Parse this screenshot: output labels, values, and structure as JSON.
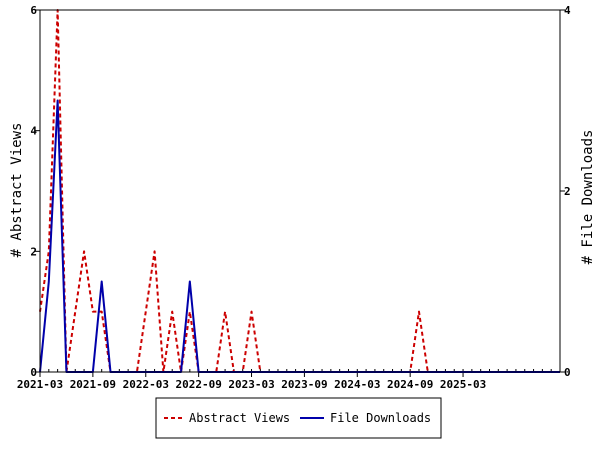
{
  "chart_data": {
    "type": "line",
    "x_tick_labels": [
      "2021-03",
      "2021-09",
      "2022-03",
      "2022-09",
      "2023-03",
      "2023-09",
      "2024-03",
      "2024-09",
      "2025-03"
    ],
    "y_left": {
      "label": "# Abstract Views",
      "range": [
        0,
        6
      ],
      "ticks": [
        "0",
        "2",
        "4",
        "6"
      ]
    },
    "y_right": {
      "label": "# File Downloads",
      "range": [
        0,
        4
      ],
      "ticks": [
        "0",
        "2",
        "4"
      ]
    },
    "x_range": [
      "2021-03",
      "2026-02"
    ],
    "legend": {
      "placement": "bottom"
    },
    "series": [
      {
        "name": "Abstract Views",
        "axis": "left",
        "color": "#cc0000",
        "style": "dashed",
        "points": [
          [
            "2021-03",
            1
          ],
          [
            "2021-04",
            2
          ],
          [
            "2021-05",
            6
          ],
          [
            "2021-06",
            0
          ],
          [
            "2021-07",
            1
          ],
          [
            "2021-08",
            2
          ],
          [
            "2021-09",
            1
          ],
          [
            "2021-10",
            1
          ],
          [
            "2021-11",
            0
          ],
          [
            "2021-12",
            0
          ],
          [
            "2022-01",
            0
          ],
          [
            "2022-02",
            0
          ],
          [
            "2022-03",
            1
          ],
          [
            "2022-04",
            2
          ],
          [
            "2022-05",
            0
          ],
          [
            "2022-06",
            1
          ],
          [
            "2022-07",
            0
          ],
          [
            "2022-08",
            1
          ],
          [
            "2022-09",
            0
          ],
          [
            "2022-10",
            0
          ],
          [
            "2022-11",
            0
          ],
          [
            "2022-12",
            1
          ],
          [
            "2023-01",
            0
          ],
          [
            "2023-02",
            0
          ],
          [
            "2023-03",
            1
          ],
          [
            "2023-04",
            0
          ],
          [
            "2023-05",
            0
          ],
          [
            "2023-06",
            0
          ],
          [
            "2023-07",
            0
          ],
          [
            "2023-08",
            0
          ],
          [
            "2023-09",
            0
          ],
          [
            "2023-10",
            0
          ],
          [
            "2023-11",
            0
          ],
          [
            "2023-12",
            0
          ],
          [
            "2024-01",
            0
          ],
          [
            "2024-02",
            0
          ],
          [
            "2024-03",
            0
          ],
          [
            "2024-04",
            0
          ],
          [
            "2024-05",
            0
          ],
          [
            "2024-06",
            0
          ],
          [
            "2024-07",
            0
          ],
          [
            "2024-08",
            0
          ],
          [
            "2024-09",
            0
          ],
          [
            "2024-10",
            1
          ],
          [
            "2024-11",
            0
          ],
          [
            "2024-12",
            0
          ],
          [
            "2025-01",
            0
          ],
          [
            "2025-02",
            0
          ],
          [
            "2025-03",
            0
          ],
          [
            "2025-04",
            0
          ],
          [
            "2025-05",
            0
          ],
          [
            "2025-06",
            0
          ],
          [
            "2025-07",
            0
          ],
          [
            "2025-08",
            0
          ],
          [
            "2025-09",
            0
          ],
          [
            "2025-10",
            0
          ],
          [
            "2025-11",
            0
          ],
          [
            "2025-12",
            0
          ],
          [
            "2026-01",
            0
          ],
          [
            "2026-02",
            0
          ]
        ]
      },
      {
        "name": "File Downloads",
        "axis": "right",
        "color": "#0000aa",
        "style": "solid",
        "points": [
          [
            "2021-03",
            0
          ],
          [
            "2021-04",
            1
          ],
          [
            "2021-05",
            3
          ],
          [
            "2021-06",
            0
          ],
          [
            "2021-07",
            0
          ],
          [
            "2021-08",
            0
          ],
          [
            "2021-09",
            0
          ],
          [
            "2021-10",
            1
          ],
          [
            "2021-11",
            0
          ],
          [
            "2021-12",
            0
          ],
          [
            "2022-01",
            0
          ],
          [
            "2022-02",
            0
          ],
          [
            "2022-03",
            0
          ],
          [
            "2022-04",
            0
          ],
          [
            "2022-05",
            0
          ],
          [
            "2022-06",
            0
          ],
          [
            "2022-07",
            0
          ],
          [
            "2022-08",
            1
          ],
          [
            "2022-09",
            0
          ],
          [
            "2022-10",
            0
          ],
          [
            "2022-11",
            0
          ],
          [
            "2022-12",
            0
          ],
          [
            "2023-01",
            0
          ],
          [
            "2023-02",
            0
          ],
          [
            "2023-03",
            0
          ],
          [
            "2023-04",
            0
          ],
          [
            "2023-05",
            0
          ],
          [
            "2023-06",
            0
          ],
          [
            "2023-07",
            0
          ],
          [
            "2023-08",
            0
          ],
          [
            "2023-09",
            0
          ],
          [
            "2023-10",
            0
          ],
          [
            "2023-11",
            0
          ],
          [
            "2023-12",
            0
          ],
          [
            "2024-01",
            0
          ],
          [
            "2024-02",
            0
          ],
          [
            "2024-03",
            0
          ],
          [
            "2024-04",
            0
          ],
          [
            "2024-05",
            0
          ],
          [
            "2024-06",
            0
          ],
          [
            "2024-07",
            0
          ],
          [
            "2024-08",
            0
          ],
          [
            "2024-09",
            0
          ],
          [
            "2024-10",
            0
          ],
          [
            "2024-11",
            0
          ],
          [
            "2024-12",
            0
          ],
          [
            "2025-01",
            0
          ],
          [
            "2025-02",
            0
          ],
          [
            "2025-03",
            0
          ],
          [
            "2025-04",
            0
          ],
          [
            "2025-05",
            0
          ],
          [
            "2025-06",
            0
          ],
          [
            "2025-07",
            0
          ],
          [
            "2025-08",
            0
          ],
          [
            "2025-09",
            0
          ],
          [
            "2025-10",
            0
          ],
          [
            "2025-11",
            0
          ],
          [
            "2025-12",
            0
          ],
          [
            "2026-01",
            0
          ],
          [
            "2026-02",
            0
          ]
        ]
      }
    ]
  }
}
